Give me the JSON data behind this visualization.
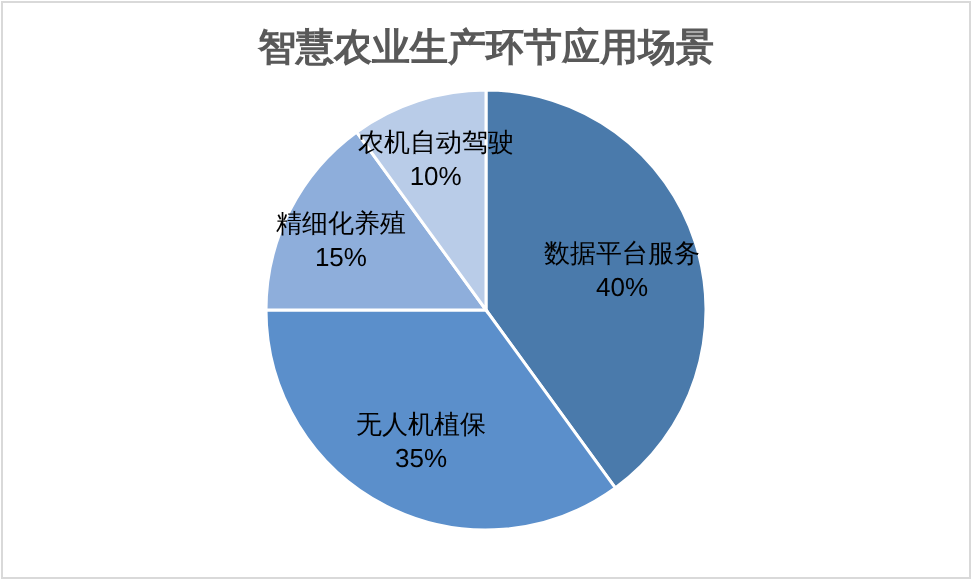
{
  "chart_data": {
    "type": "pie",
    "title": "智慧农业生产环节应用场景",
    "categories": [
      "数据平台服务",
      "无人机植保",
      "精细化养殖",
      "农机自动驾驶"
    ],
    "values": [
      40,
      35,
      15,
      10
    ],
    "colors": [
      "#4a7aab",
      "#5b8fcb",
      "#8eaedb",
      "#b9cce8"
    ],
    "value_labels": [
      "40%",
      "35%",
      "15%",
      "10%"
    ],
    "legend": false
  }
}
